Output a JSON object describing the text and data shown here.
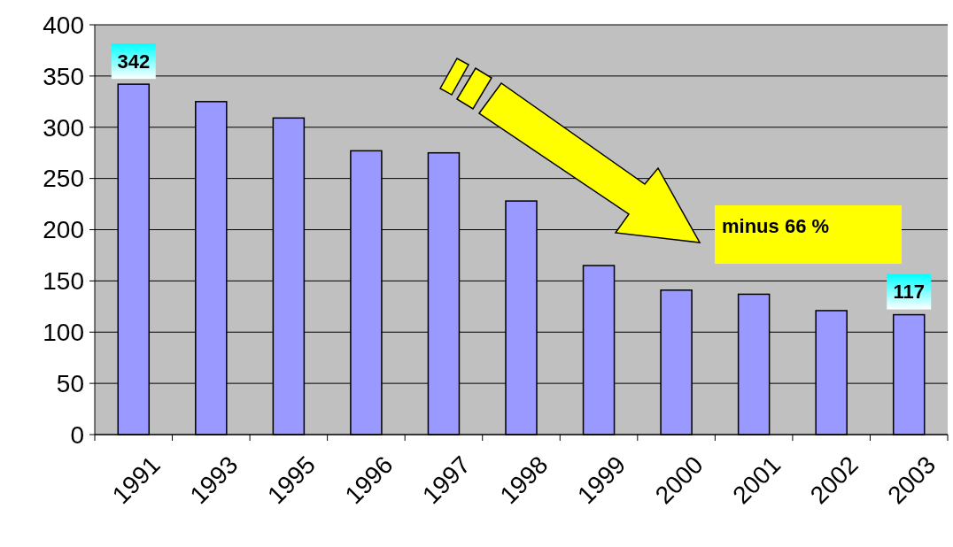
{
  "chart_data": {
    "type": "bar",
    "categories": [
      "1991",
      "1993",
      "1995",
      "1996",
      "1997",
      "1998",
      "1999",
      "2000",
      "2001",
      "2002",
      "2003"
    ],
    "values": [
      342,
      325,
      309,
      277,
      275,
      228,
      165,
      141,
      137,
      121,
      117
    ],
    "color": "#9999ff",
    "value_labels": [
      "342",
      null,
      null,
      null,
      null,
      null,
      null,
      null,
      null,
      null,
      "117"
    ],
    "ylim": [
      0,
      400
    ],
    "yticks": [
      0,
      50,
      100,
      150,
      200,
      250,
      300,
      350,
      400
    ],
    "grid": "y",
    "annotations": [
      "minus 66 %"
    ]
  }
}
